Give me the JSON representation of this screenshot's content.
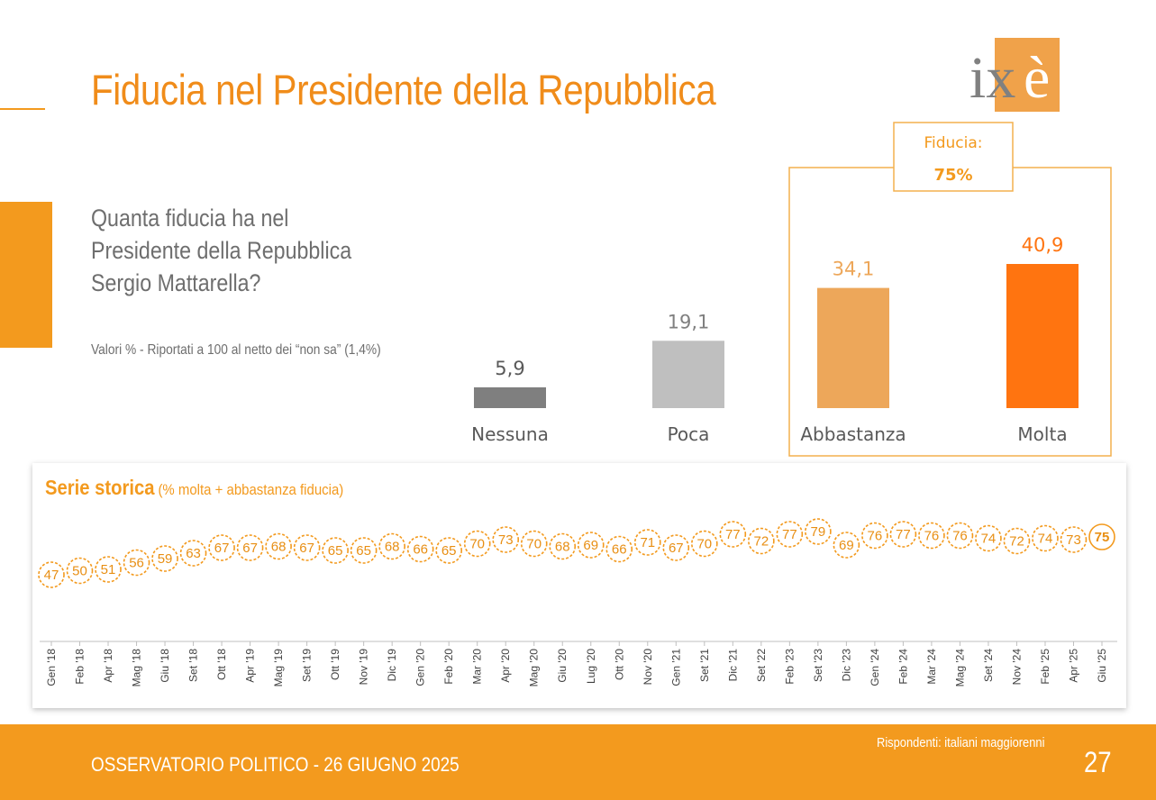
{
  "title": "Fiducia nel Presidente della Repubblica",
  "logo": {
    "text_main": "ix",
    "text_accent": "è",
    "box_color": "#f0a24a",
    "text_color": "#808080"
  },
  "question": {
    "lines": [
      "Quanta fiducia ha nel",
      "Presidente della Repubblica",
      "Sergio Mattarella?"
    ]
  },
  "note": "Valori % - Riportati a 100 al netto dei “non sa” (1,4%)",
  "fiducia_box": {
    "label": "Fiducia:",
    "value": "75%"
  },
  "chart_data": [
    {
      "type": "bar",
      "categories": [
        "Nessuna",
        "Poca",
        "Abbastanza",
        "Molta"
      ],
      "values": [
        5.9,
        19.1,
        34.1,
        40.9
      ],
      "value_labels": [
        "5,9",
        "19,1",
        "34,1",
        "40,9"
      ],
      "colors": [
        "#7f7f7f",
        "#bfbfbf",
        "#eda75a",
        "#ff7410"
      ],
      "label_colors": [
        "#595959",
        "#808080",
        "#eda75a",
        "#ff7410"
      ],
      "ylim": [
        0,
        45
      ]
    },
    {
      "type": "line",
      "title": "Serie storica",
      "subtitle": "(% molta + abbastanza fiducia)",
      "x": [
        "Gen '18",
        "Feb '18",
        "Apr '18",
        "Mag '18",
        "Giu '18",
        "Set '18",
        "Ott '18",
        "Apr '19",
        "Mag '19",
        "Set '19",
        "Ott '19",
        "Nov '19",
        "Dic '19",
        "Gen '20",
        "Feb '20",
        "Mar '20",
        "Apr '20",
        "Mag '20",
        "Giu '20",
        "Lug '20",
        "Ott '20",
        "Nov '20",
        "Gen '21",
        "Set '21",
        "Dic '21",
        "Set '22",
        "Feb '23",
        "Set '23",
        "Dic '23",
        "Gen '24",
        "Feb '24",
        "Mar '24",
        "Mag '24",
        "Set '24",
        "Nov '24",
        "Feb '25",
        "Apr '25",
        "Giu '25"
      ],
      "values": [
        47,
        50,
        51,
        56,
        59,
        63,
        67,
        67,
        68,
        67,
        65,
        65,
        68,
        66,
        65,
        70,
        73,
        70,
        68,
        69,
        66,
        71,
        67,
        70,
        77,
        72,
        77,
        79,
        69,
        76,
        77,
        76,
        76,
        74,
        72,
        74,
        73,
        75
      ],
      "ylim": [
        45,
        80
      ],
      "color": "#f39a1e",
      "label_color": "#e88f14"
    }
  ],
  "footer": {
    "left": "OSSERVATORIO POLITICO - 26 GIUGNO 2025",
    "right": "Rispondenti: italiani maggiorenni",
    "page": "27"
  }
}
